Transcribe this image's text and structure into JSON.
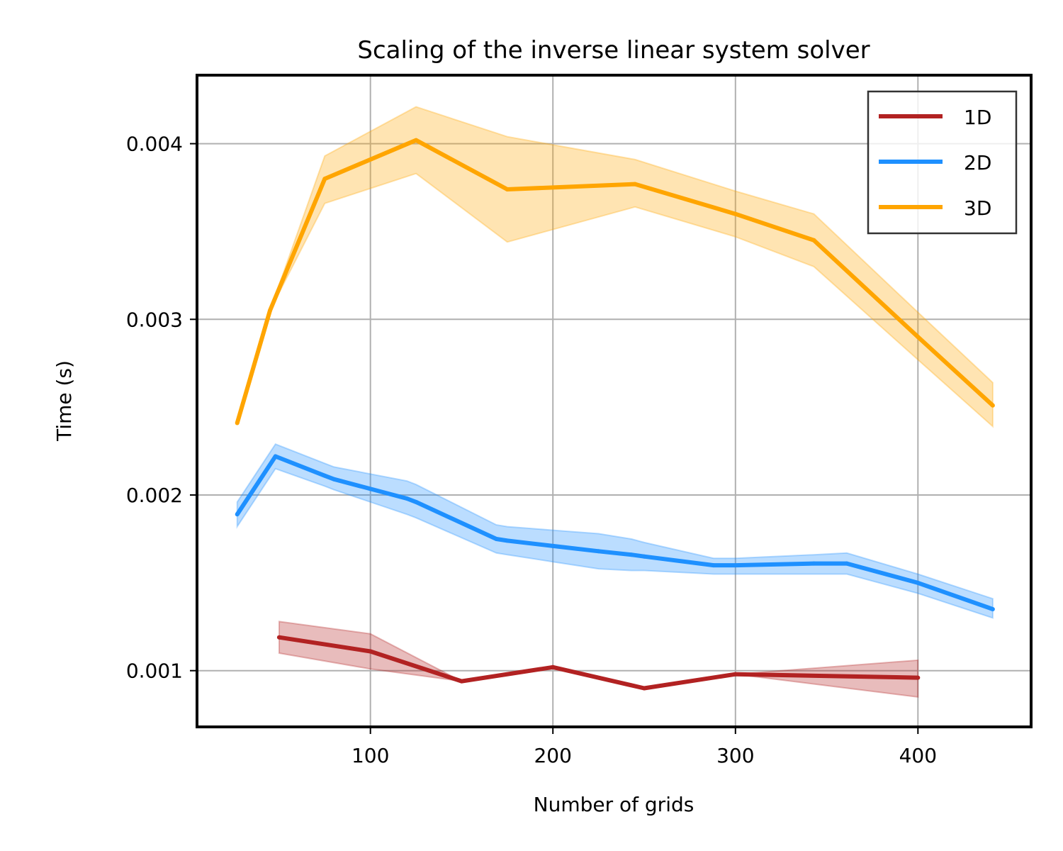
{
  "chart_data": {
    "type": "line",
    "title": "Scaling of the inverse linear system solver",
    "xlabel": "Number of grids",
    "ylabel": "Time (s)",
    "xlim": [
      5,
      462
    ],
    "ylim": [
      0.00068,
      0.00439
    ],
    "xticks": [
      100,
      200,
      300,
      400
    ],
    "xtick_labels": [
      "100",
      "200",
      "300",
      "400"
    ],
    "yticks": [
      0.001,
      0.002,
      0.003,
      0.004
    ],
    "ytick_labels": [
      "0.001",
      "0.002",
      "0.003",
      "0.004"
    ],
    "grid": true,
    "legend_position": "top-right",
    "series": [
      {
        "name": "1D",
        "color": "#b22222",
        "x": [
          50,
          100,
          150,
          200,
          250,
          300,
          400
        ],
        "y": [
          0.00119,
          0.00111,
          0.00094,
          0.00102,
          0.0009,
          0.00098,
          0.00096
        ],
        "lower": [
          0.0011,
          0.00101,
          0.00094,
          0.00102,
          0.0009,
          0.00098,
          0.00085
        ],
        "upper": [
          0.00128,
          0.00121,
          0.00094,
          0.00102,
          0.0009,
          0.00098,
          0.00106
        ]
      },
      {
        "name": "2D",
        "color": "#1e90ff",
        "x": [
          27,
          48,
          75,
          80,
          120,
          125,
          169,
          175,
          200,
          225,
          243,
          250,
          288,
          300,
          343,
          361,
          400,
          441
        ],
        "y": [
          0.00189,
          0.00222,
          0.00211,
          0.00209,
          0.00198,
          0.00196,
          0.00175,
          0.00174,
          0.00171,
          0.00168,
          0.00166,
          0.00165,
          0.0016,
          0.0016,
          0.00161,
          0.00161,
          0.0015,
          0.00135
        ],
        "lower": [
          0.00182,
          0.00215,
          0.00205,
          0.00203,
          0.00189,
          0.00187,
          0.00167,
          0.00166,
          0.00162,
          0.00158,
          0.00157,
          0.00157,
          0.00155,
          0.00155,
          0.00155,
          0.00155,
          0.00144,
          0.0013
        ],
        "upper": [
          0.00196,
          0.00229,
          0.00218,
          0.00216,
          0.00208,
          0.00206,
          0.00183,
          0.00182,
          0.0018,
          0.00178,
          0.00175,
          0.00173,
          0.00164,
          0.00164,
          0.00166,
          0.00167,
          0.00155,
          0.00141
        ]
      },
      {
        "name": "3D",
        "color": "#ffa500",
        "x": [
          27,
          45,
          75,
          125,
          175,
          245,
          300,
          343,
          400,
          441
        ],
        "y": [
          0.00241,
          0.00305,
          0.0038,
          0.00402,
          0.00374,
          0.00377,
          0.0036,
          0.00345,
          0.0029,
          0.00251
        ],
        "lower": [
          0.00241,
          0.00305,
          0.00366,
          0.00383,
          0.00344,
          0.00364,
          0.00347,
          0.0033,
          0.00277,
          0.00239
        ],
        "upper": [
          0.00241,
          0.00305,
          0.00393,
          0.00421,
          0.00404,
          0.00391,
          0.00373,
          0.0036,
          0.00304,
          0.00264
        ]
      }
    ]
  }
}
